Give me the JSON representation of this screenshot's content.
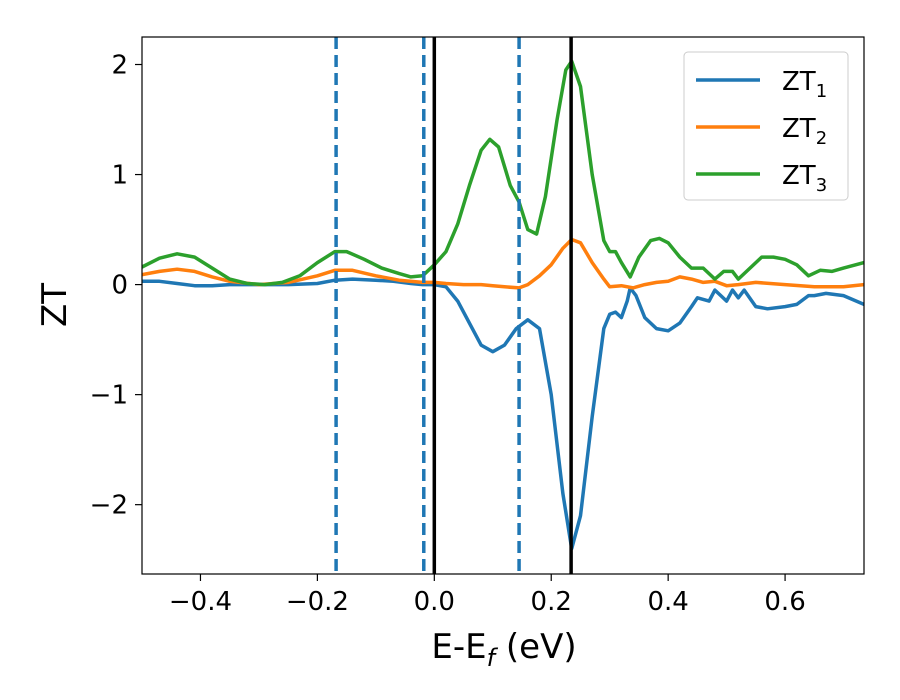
{
  "chart_data": {
    "type": "line",
    "xlabel_main": "E-E",
    "xlabel_sub": "f",
    "xlabel_unit": " (eV)",
    "ylabel": "ZT",
    "xlim": [
      -0.5,
      0.735
    ],
    "ylim": [
      -2.63,
      2.25
    ],
    "x_ticks": [
      -0.4,
      -0.2,
      0.0,
      0.2,
      0.4,
      0.6
    ],
    "x_tick_labels": [
      "−0.4",
      "−0.2",
      "0.0",
      "0.2",
      "0.4",
      "0.6"
    ],
    "y_ticks": [
      -2,
      -1,
      0,
      1,
      2
    ],
    "y_tick_labels": [
      "−2",
      "−1",
      "0",
      "1",
      "2"
    ],
    "grid": false,
    "legend_position": "top-right",
    "vlines": [
      {
        "x": -0.168,
        "style": "dashed",
        "color": "#1f77b4"
      },
      {
        "x": -0.018,
        "style": "dashed",
        "color": "#1f77b4"
      },
      {
        "x": 0.0,
        "style": "solid",
        "color": "#000000"
      },
      {
        "x": 0.145,
        "style": "dashed",
        "color": "#1f77b4"
      },
      {
        "x": 0.234,
        "style": "solid",
        "color": "#000000"
      }
    ],
    "series": [
      {
        "name": "ZT",
        "subscript": "1",
        "color": "#1f77b4",
        "points": [
          [
            -0.5,
            0.03
          ],
          [
            -0.47,
            0.03
          ],
          [
            -0.44,
            0.01
          ],
          [
            -0.41,
            -0.01
          ],
          [
            -0.38,
            -0.01
          ],
          [
            -0.35,
            0.0
          ],
          [
            -0.3,
            0.0
          ],
          [
            -0.25,
            0.0
          ],
          [
            -0.2,
            0.01
          ],
          [
            -0.17,
            0.04
          ],
          [
            -0.14,
            0.05
          ],
          [
            -0.1,
            0.04
          ],
          [
            -0.07,
            0.03
          ],
          [
            -0.04,
            0.01
          ],
          [
            -0.02,
            0.0
          ],
          [
            0.0,
            0.0
          ],
          [
            0.02,
            -0.02
          ],
          [
            0.04,
            -0.15
          ],
          [
            0.06,
            -0.35
          ],
          [
            0.08,
            -0.55
          ],
          [
            0.1,
            -0.61
          ],
          [
            0.12,
            -0.55
          ],
          [
            0.14,
            -0.4
          ],
          [
            0.16,
            -0.32
          ],
          [
            0.18,
            -0.4
          ],
          [
            0.2,
            -1.0
          ],
          [
            0.22,
            -1.9
          ],
          [
            0.235,
            -2.4
          ],
          [
            0.25,
            -2.1
          ],
          [
            0.27,
            -1.2
          ],
          [
            0.29,
            -0.4
          ],
          [
            0.3,
            -0.27
          ],
          [
            0.31,
            -0.25
          ],
          [
            0.32,
            -0.3
          ],
          [
            0.33,
            -0.15
          ],
          [
            0.335,
            -0.03
          ],
          [
            0.345,
            -0.1
          ],
          [
            0.36,
            -0.3
          ],
          [
            0.38,
            -0.4
          ],
          [
            0.4,
            -0.42
          ],
          [
            0.42,
            -0.35
          ],
          [
            0.44,
            -0.2
          ],
          [
            0.45,
            -0.12
          ],
          [
            0.47,
            -0.15
          ],
          [
            0.48,
            -0.05
          ],
          [
            0.49,
            -0.1
          ],
          [
            0.5,
            -0.15
          ],
          [
            0.51,
            -0.05
          ],
          [
            0.52,
            -0.12
          ],
          [
            0.53,
            -0.05
          ],
          [
            0.55,
            -0.2
          ],
          [
            0.57,
            -0.22
          ],
          [
            0.6,
            -0.2
          ],
          [
            0.62,
            -0.18
          ],
          [
            0.64,
            -0.1
          ],
          [
            0.65,
            -0.1
          ],
          [
            0.67,
            -0.08
          ],
          [
            0.7,
            -0.1
          ],
          [
            0.735,
            -0.18
          ]
        ]
      },
      {
        "name": "ZT",
        "subscript": "2",
        "color": "#ff7f0e",
        "points": [
          [
            -0.5,
            0.09
          ],
          [
            -0.47,
            0.12
          ],
          [
            -0.44,
            0.14
          ],
          [
            -0.41,
            0.12
          ],
          [
            -0.38,
            0.07
          ],
          [
            -0.35,
            0.03
          ],
          [
            -0.3,
            0.0
          ],
          [
            -0.25,
            0.02
          ],
          [
            -0.2,
            0.08
          ],
          [
            -0.17,
            0.13
          ],
          [
            -0.14,
            0.13
          ],
          [
            -0.1,
            0.08
          ],
          [
            -0.06,
            0.04
          ],
          [
            -0.02,
            0.02
          ],
          [
            0.0,
            0.02
          ],
          [
            0.02,
            0.01
          ],
          [
            0.05,
            0.0
          ],
          [
            0.08,
            0.0
          ],
          [
            0.1,
            -0.01
          ],
          [
            0.12,
            -0.02
          ],
          [
            0.145,
            -0.03
          ],
          [
            0.16,
            0.0
          ],
          [
            0.18,
            0.08
          ],
          [
            0.2,
            0.18
          ],
          [
            0.22,
            0.33
          ],
          [
            0.235,
            0.41
          ],
          [
            0.25,
            0.38
          ],
          [
            0.27,
            0.2
          ],
          [
            0.29,
            0.05
          ],
          [
            0.3,
            -0.02
          ],
          [
            0.32,
            -0.01
          ],
          [
            0.34,
            -0.03
          ],
          [
            0.36,
            0.0
          ],
          [
            0.38,
            0.02
          ],
          [
            0.4,
            0.03
          ],
          [
            0.42,
            0.07
          ],
          [
            0.44,
            0.05
          ],
          [
            0.46,
            0.02
          ],
          [
            0.48,
            0.03
          ],
          [
            0.5,
            -0.01
          ],
          [
            0.52,
            0.0
          ],
          [
            0.55,
            0.02
          ],
          [
            0.6,
            0.0
          ],
          [
            0.65,
            -0.02
          ],
          [
            0.7,
            -0.02
          ],
          [
            0.735,
            0.0
          ]
        ]
      },
      {
        "name": "ZT",
        "subscript": "3",
        "color": "#2ca02c",
        "points": [
          [
            -0.5,
            0.16
          ],
          [
            -0.47,
            0.24
          ],
          [
            -0.44,
            0.28
          ],
          [
            -0.41,
            0.25
          ],
          [
            -0.38,
            0.15
          ],
          [
            -0.35,
            0.05
          ],
          [
            -0.32,
            0.01
          ],
          [
            -0.29,
            0.0
          ],
          [
            -0.26,
            0.02
          ],
          [
            -0.23,
            0.08
          ],
          [
            -0.2,
            0.2
          ],
          [
            -0.17,
            0.3
          ],
          [
            -0.15,
            0.3
          ],
          [
            -0.12,
            0.23
          ],
          [
            -0.09,
            0.15
          ],
          [
            -0.06,
            0.1
          ],
          [
            -0.04,
            0.07
          ],
          [
            -0.02,
            0.08
          ],
          [
            0.0,
            0.18
          ],
          [
            0.02,
            0.3
          ],
          [
            0.04,
            0.55
          ],
          [
            0.06,
            0.9
          ],
          [
            0.08,
            1.22
          ],
          [
            0.095,
            1.32
          ],
          [
            0.11,
            1.25
          ],
          [
            0.13,
            0.9
          ],
          [
            0.145,
            0.75
          ],
          [
            0.16,
            0.5
          ],
          [
            0.175,
            0.46
          ],
          [
            0.19,
            0.8
          ],
          [
            0.21,
            1.5
          ],
          [
            0.225,
            1.95
          ],
          [
            0.235,
            2.03
          ],
          [
            0.25,
            1.8
          ],
          [
            0.27,
            1.0
          ],
          [
            0.29,
            0.4
          ],
          [
            0.3,
            0.3
          ],
          [
            0.31,
            0.3
          ],
          [
            0.32,
            0.2
          ],
          [
            0.335,
            0.07
          ],
          [
            0.35,
            0.25
          ],
          [
            0.37,
            0.4
          ],
          [
            0.385,
            0.42
          ],
          [
            0.4,
            0.38
          ],
          [
            0.42,
            0.25
          ],
          [
            0.44,
            0.15
          ],
          [
            0.46,
            0.15
          ],
          [
            0.48,
            0.05
          ],
          [
            0.495,
            0.12
          ],
          [
            0.51,
            0.12
          ],
          [
            0.52,
            0.05
          ],
          [
            0.54,
            0.15
          ],
          [
            0.56,
            0.25
          ],
          [
            0.58,
            0.25
          ],
          [
            0.6,
            0.23
          ],
          [
            0.62,
            0.18
          ],
          [
            0.64,
            0.08
          ],
          [
            0.66,
            0.13
          ],
          [
            0.68,
            0.12
          ],
          [
            0.7,
            0.15
          ],
          [
            0.735,
            0.2
          ]
        ]
      }
    ]
  }
}
